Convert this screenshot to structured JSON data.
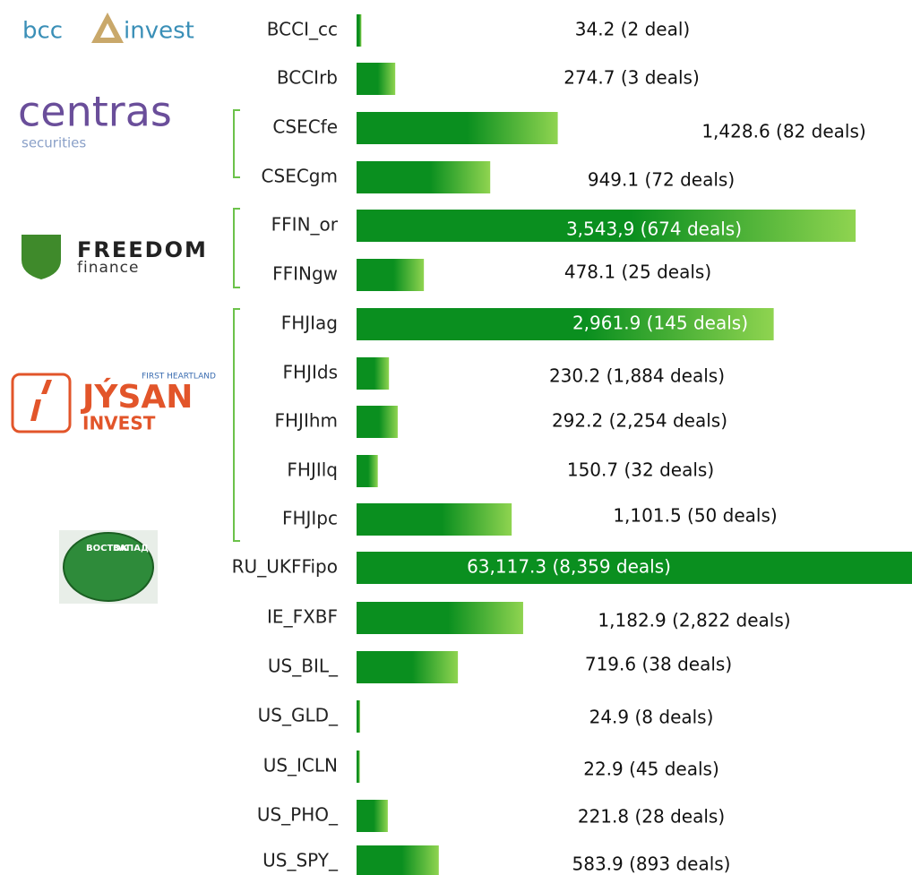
{
  "chart_data": {
    "type": "bar",
    "orientation": "horizontal",
    "categories": [
      "BCCI_cc",
      "BCCIrb",
      "CSECfe",
      "CSECgm",
      "FFIN_or",
      "FFINgw",
      "FHJIag",
      "FHJIds",
      "FHJIhm",
      "FHJIlq",
      "FHJIpc",
      "RU_UKFFipo",
      "IE_FXBF",
      "US_BIL_",
      "US_GLD_",
      "US_ICLN",
      "US_PHO_",
      "US_SPY_"
    ],
    "values": [
      34.2,
      274.7,
      1428.6,
      949.1,
      3543.9,
      478.1,
      2961.9,
      230.2,
      292.2,
      150.7,
      1101.5,
      63117.3,
      1182.9,
      719.6,
      24.9,
      22.9,
      221.8,
      583.9
    ],
    "value_labels": [
      "34.2 (2 deal)",
      "274.7 (3 deals)",
      "1,428.6 (82 deals)",
      "949.1 (72 deals)",
      "3,543,9 (674 deals)",
      "478.1 (25 deals)",
      "2,961.9 (145 deals)",
      "230.2 (1,884 deals)",
      "292.2 (2,254 deals)",
      "150.7 (32 deals)",
      "1,101.5 (50 deals)",
      "63,117.3 (8,359 deals)",
      "1,182.9 (2,822 deals)",
      "719.6 (38 deals)",
      "24.9 (8 deals)",
      "22.9 (45 deals)",
      "221.8 (28 deals)",
      "583.9 (893 deals)"
    ],
    "color": "#0a8f1f",
    "color_end": "#8fd450"
  },
  "logos": {
    "bcc": [
      "bcc",
      "invest"
    ],
    "centras": [
      "centras",
      "securities"
    ],
    "freedom": [
      "FREEDOM",
      "finance"
    ],
    "jysan": [
      "FIRST HEARTLAND",
      "JÝSAN",
      "INVEST"
    ],
    "vostok": [
      "ВОСТОК",
      "ЗАПАД"
    ]
  }
}
